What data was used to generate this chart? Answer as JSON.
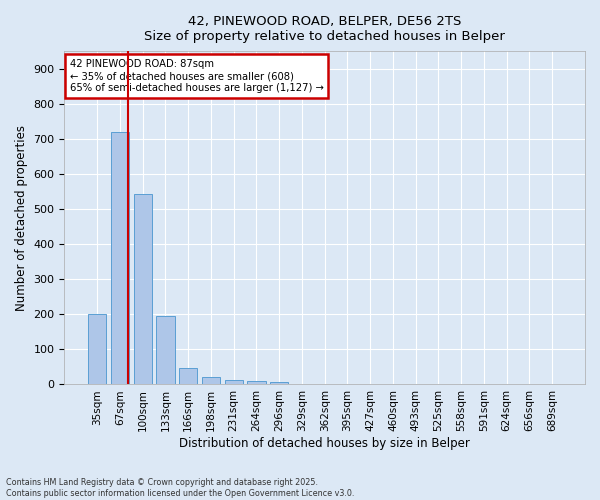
{
  "title_line1": "42, PINEWOOD ROAD, BELPER, DE56 2TS",
  "title_line2": "Size of property relative to detached houses in Belper",
  "xlabel": "Distribution of detached houses by size in Belper",
  "ylabel": "Number of detached properties",
  "categories": [
    "35sqm",
    "67sqm",
    "100sqm",
    "133sqm",
    "166sqm",
    "198sqm",
    "231sqm",
    "264sqm",
    "296sqm",
    "329sqm",
    "362sqm",
    "395sqm",
    "427sqm",
    "460sqm",
    "493sqm",
    "525sqm",
    "558sqm",
    "591sqm",
    "624sqm",
    "656sqm",
    "689sqm"
  ],
  "values": [
    202,
    720,
    543,
    196,
    47,
    20,
    13,
    10,
    7,
    0,
    0,
    0,
    0,
    0,
    0,
    0,
    0,
    0,
    0,
    0,
    0
  ],
  "bar_color": "#aec6e8",
  "bar_edge_color": "#5a9fd4",
  "vline_color": "#cc0000",
  "vline_x_data": 1.37,
  "annotation_text": "42 PINEWOOD ROAD: 87sqm\n← 35% of detached houses are smaller (608)\n65% of semi-detached houses are larger (1,127) →",
  "annotation_box_color": "#ffffff",
  "annotation_box_edge": "#cc0000",
  "ylim": [
    0,
    950
  ],
  "yticks": [
    0,
    100,
    200,
    300,
    400,
    500,
    600,
    700,
    800,
    900
  ],
  "background_color": "#dce8f5",
  "plot_bg_color": "#dce8f5",
  "grid_color": "#ffffff",
  "footer_line1": "Contains HM Land Registry data © Crown copyright and database right 2025.",
  "footer_line2": "Contains public sector information licensed under the Open Government Licence v3.0."
}
